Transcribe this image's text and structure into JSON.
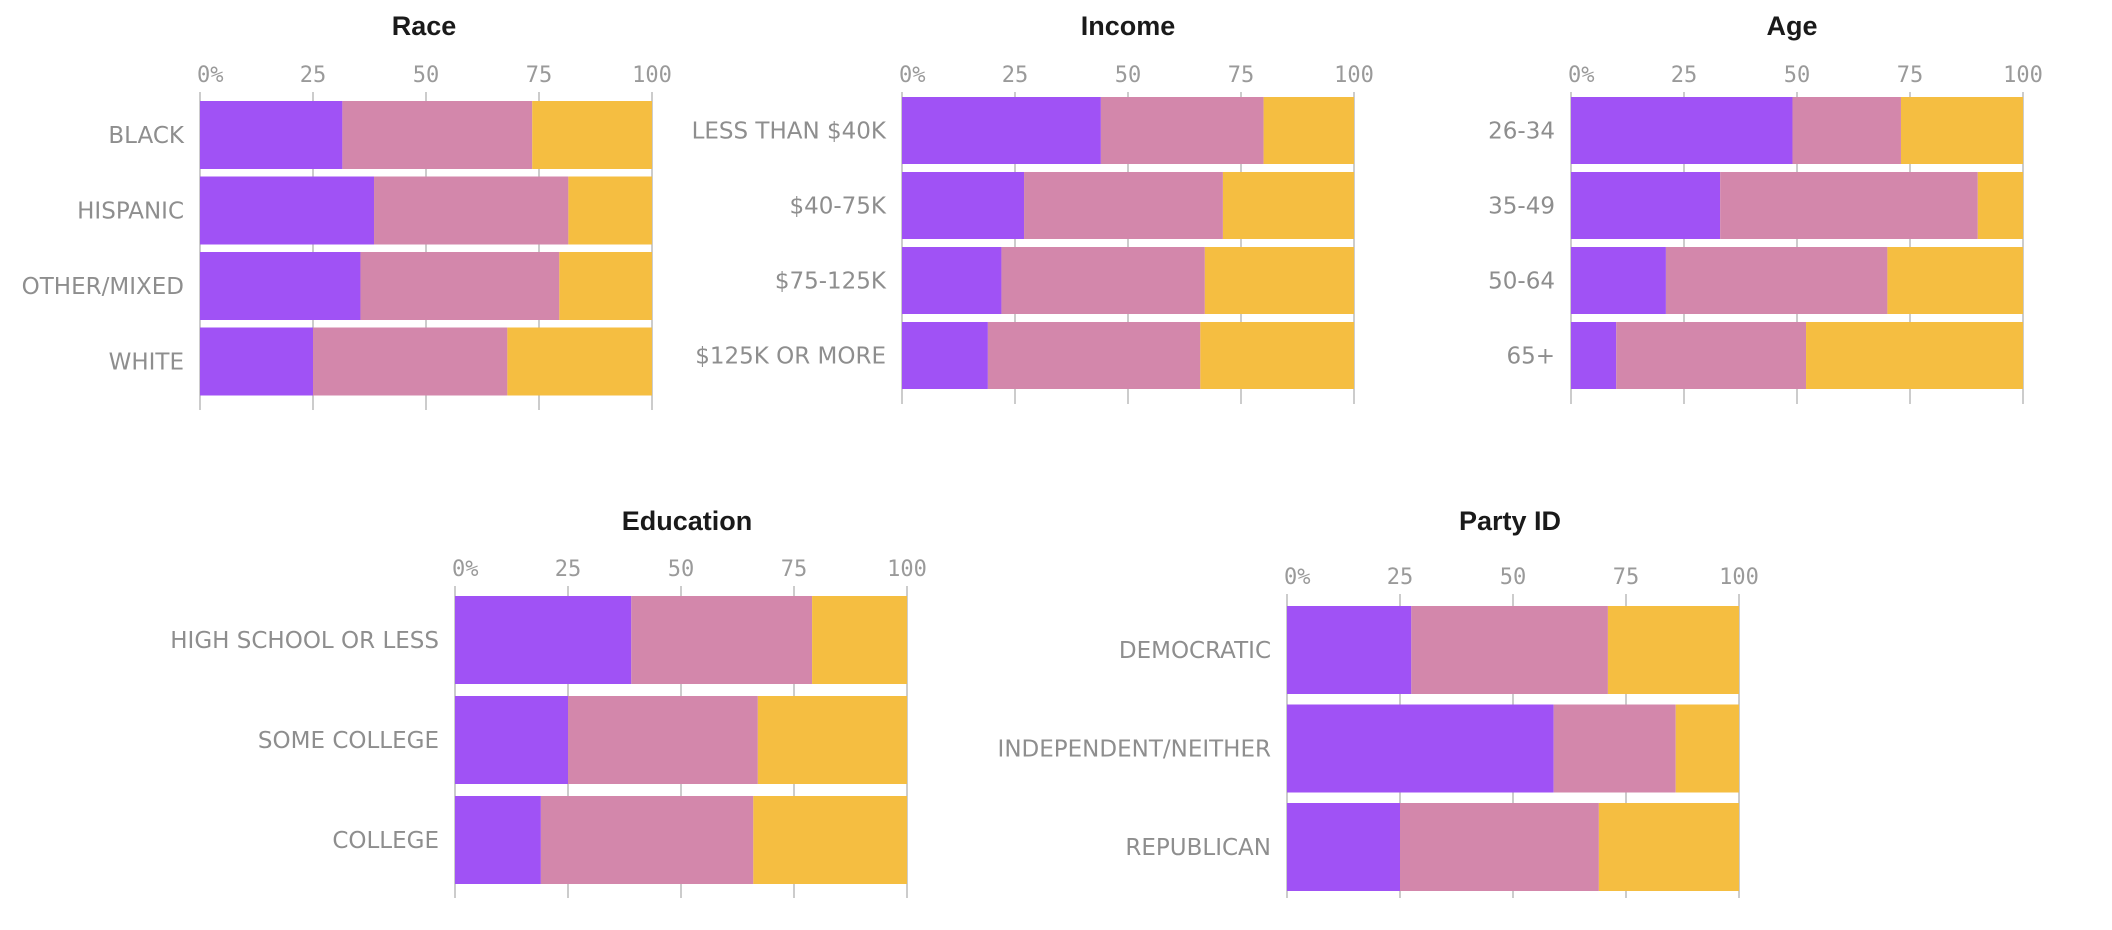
{
  "colors": {
    "segment_1": "#a052f5",
    "segment_2": "#d387ab",
    "segment_3": "#f5be41",
    "axis": "#cccccc"
  },
  "chart_data": [
    {
      "type": "bar",
      "orientation": "horizontal",
      "stacked": true,
      "title": "Race",
      "xlim": [
        0,
        100
      ],
      "ticks": [
        "0%",
        "25",
        "50",
        "75",
        "100"
      ],
      "categories": [
        "BLACK",
        "HISPANIC",
        "OTHER/MIXED",
        "WHITE"
      ],
      "series": [
        {
          "values": [
            31.5,
            38.5,
            35.5,
            25
          ]
        },
        {
          "values": [
            42,
            43,
            44,
            43
          ]
        },
        {
          "values": [
            26.5,
            18.5,
            20.5,
            32
          ]
        }
      ]
    },
    {
      "type": "bar",
      "orientation": "horizontal",
      "stacked": true,
      "title": "Income",
      "xlim": [
        0,
        100
      ],
      "ticks": [
        "0%",
        "25",
        "50",
        "75",
        "100"
      ],
      "categories": [
        "LESS THAN $40K",
        "$40-75K",
        "$75-125K",
        "$125K OR MORE"
      ],
      "series": [
        {
          "values": [
            44,
            27,
            22,
            19
          ]
        },
        {
          "values": [
            36,
            44,
            45,
            47
          ]
        },
        {
          "values": [
            20,
            29,
            33,
            34
          ]
        }
      ]
    },
    {
      "type": "bar",
      "orientation": "horizontal",
      "stacked": true,
      "title": "Age",
      "xlim": [
        0,
        100
      ],
      "ticks": [
        "0%",
        "25",
        "50",
        "75",
        "100"
      ],
      "categories": [
        "26-34",
        "35-49",
        "50-64",
        "65+"
      ],
      "series": [
        {
          "values": [
            49,
            33,
            21,
            10
          ]
        },
        {
          "values": [
            24,
            57,
            49,
            42
          ]
        },
        {
          "values": [
            27,
            10,
            30,
            48
          ]
        }
      ]
    },
    {
      "type": "bar",
      "orientation": "horizontal",
      "stacked": true,
      "title": "Education",
      "xlim": [
        0,
        100
      ],
      "ticks": [
        "0%",
        "25",
        "50",
        "75",
        "100"
      ],
      "categories": [
        "HIGH SCHOOL OR LESS",
        "SOME COLLEGE",
        "COLLEGE"
      ],
      "series": [
        {
          "values": [
            39,
            25,
            19
          ]
        },
        {
          "values": [
            40,
            42,
            47
          ]
        },
        {
          "values": [
            21,
            33,
            34
          ]
        }
      ]
    },
    {
      "type": "bar",
      "orientation": "horizontal",
      "stacked": true,
      "title": "Party ID",
      "xlim": [
        0,
        100
      ],
      "ticks": [
        "0%",
        "25",
        "50",
        "75",
        "100"
      ],
      "categories": [
        "DEMOCRATIC",
        "INDEPENDENT/NEITHER",
        "REPUBLICAN"
      ],
      "series": [
        {
          "values": [
            27.5,
            59,
            25
          ]
        },
        {
          "values": [
            43.5,
            27,
            44
          ]
        },
        {
          "values": [
            29,
            14,
            31
          ]
        }
      ]
    }
  ]
}
